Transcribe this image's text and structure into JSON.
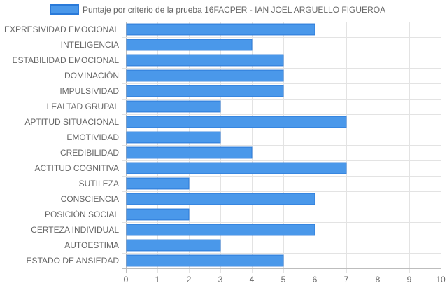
{
  "chart_data": {
    "type": "bar",
    "orientation": "horizontal",
    "title": "",
    "xlabel": "",
    "ylabel": "",
    "xlim": [
      0,
      10
    ],
    "xticks": [
      0,
      1,
      2,
      3,
      4,
      5,
      6,
      7,
      8,
      9,
      10
    ],
    "grid": true,
    "legend_position": "top",
    "categories": [
      "EXPRESIVIDAD EMOCIONAL",
      "INTELIGENCIA",
      "ESTABILIDAD EMOCIONAL",
      "DOMINACIÓN",
      "IMPULSIVIDAD",
      "LEALTAD GRUPAL",
      "APTITUD SITUACIONAL",
      "EMOTIVIDAD",
      "CREDIBILIDAD",
      "ACTITUD COGNITIVA",
      "SUTILEZA",
      "CONSCIENCIA",
      "POSICIÓN SOCIAL",
      "CERTEZA INDIVIDUAL",
      "AUTOESTIMA",
      "ESTADO DE ANSIEDAD"
    ],
    "series": [
      {
        "name": "Puntaje por criterio de la prueba 16FACPER - IAN JOEL ARGUELLO FIGUEROA",
        "values": [
          6,
          4,
          5,
          5,
          5,
          3,
          7,
          3,
          4,
          7,
          2,
          6,
          2,
          6,
          3,
          5
        ],
        "color": "#4a98ea",
        "border_color": "#2a7ad9"
      }
    ]
  }
}
